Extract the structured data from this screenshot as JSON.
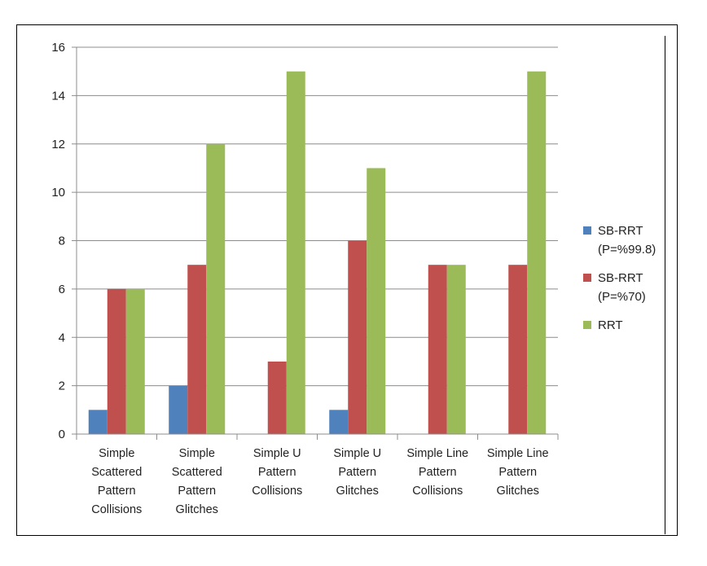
{
  "chart_data": {
    "type": "bar",
    "categories": [
      [
        "Simple",
        "Scattered",
        "Pattern",
        "Collisions"
      ],
      [
        "Simple",
        "Scattered",
        "Pattern",
        "Glitches"
      ],
      [
        "Simple U",
        "Pattern",
        "Collisions"
      ],
      [
        "Simple U",
        "Pattern",
        "Glitches"
      ],
      [
        "Simple Line",
        "Pattern",
        "Collisions"
      ],
      [
        "Simple Line",
        "Pattern",
        "Glitches"
      ]
    ],
    "series": [
      {
        "name": [
          "SB-RRT",
          "(P=%99.8)"
        ],
        "color": "#4f81bd",
        "values": [
          1,
          2,
          0,
          1,
          0,
          0
        ]
      },
      {
        "name": [
          "SB-RRT",
          "(P=%70)"
        ],
        "color": "#c0504d",
        "values": [
          6,
          7,
          3,
          8,
          7,
          7
        ]
      },
      {
        "name": [
          "RRT"
        ],
        "color": "#9bbb59",
        "values": [
          6,
          12,
          15,
          11,
          7,
          15
        ]
      }
    ],
    "ylim": [
      0,
      16
    ],
    "yticks": [
      0,
      2,
      4,
      6,
      8,
      10,
      12,
      14,
      16
    ],
    "grid": true,
    "legend": "right",
    "title": "",
    "xlabel": "",
    "ylabel": ""
  }
}
